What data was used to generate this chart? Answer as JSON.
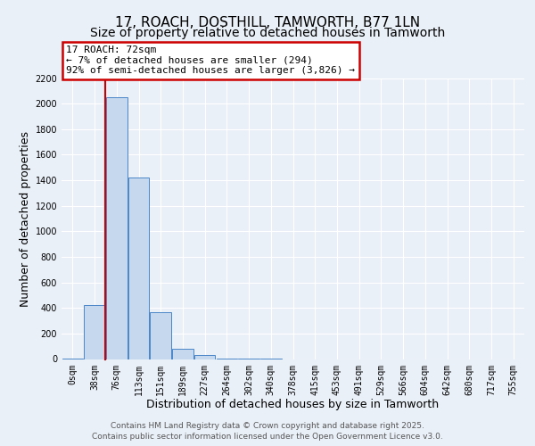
{
  "title1": "17, ROACH, DOSTHILL, TAMWORTH, B77 1LN",
  "title2": "Size of property relative to detached houses in Tamworth",
  "xlabel": "Distribution of detached houses by size in Tamworth",
  "ylabel": "Number of detached properties",
  "bin_labels": [
    "0sqm",
    "38sqm",
    "76sqm",
    "113sqm",
    "151sqm",
    "189sqm",
    "227sqm",
    "264sqm",
    "302sqm",
    "340sqm",
    "378sqm",
    "415sqm",
    "453sqm",
    "491sqm",
    "529sqm",
    "566sqm",
    "604sqm",
    "642sqm",
    "680sqm",
    "717sqm",
    "755sqm"
  ],
  "bar_values": [
    2,
    420,
    2050,
    1420,
    370,
    80,
    30,
    5,
    2,
    1,
    0,
    0,
    0,
    0,
    0,
    0,
    0,
    0,
    0,
    0,
    0
  ],
  "bar_color": "#c5d8ed",
  "bar_edge_color": "#4a86c8",
  "annotation_text": "17 ROACH: 72sqm\n← 7% of detached houses are smaller (294)\n92% of semi-detached houses are larger (3,826) →",
  "annotation_box_color": "#cc0000",
  "ylim": [
    0,
    2200
  ],
  "yticks": [
    0,
    200,
    400,
    600,
    800,
    1000,
    1200,
    1400,
    1600,
    1800,
    2000,
    2200
  ],
  "bg_color": "#eaf0f8",
  "plot_bg_color": "#eaf0f8",
  "grid_color": "#ffffff",
  "footer_line1": "Contains HM Land Registry data © Crown copyright and database right 2025.",
  "footer_line2": "Contains public sector information licensed under the Open Government Licence v3.0.",
  "title_fontsize": 11,
  "subtitle_fontsize": 10,
  "tick_fontsize": 7,
  "label_fontsize": 9
}
